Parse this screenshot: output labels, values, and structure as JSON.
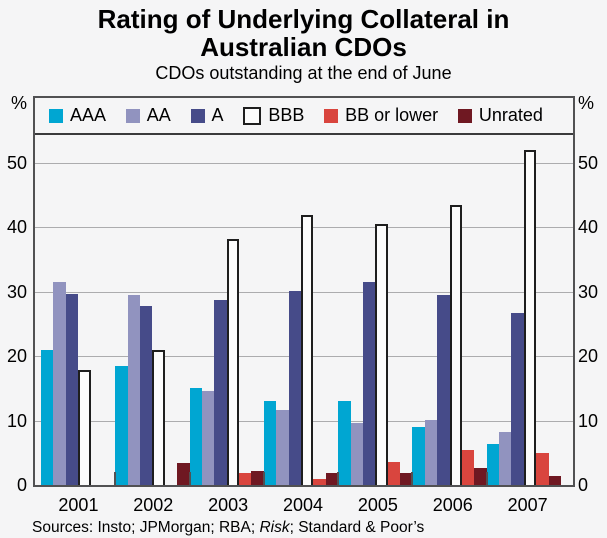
{
  "title": {
    "line1": "Rating of Underlying Collateral in",
    "line2": "Australian CDOs"
  },
  "subtitle": "CDOs outstanding at the end of June",
  "axis": {
    "unit_left": "%",
    "unit_right": "%",
    "tick_labels": [
      0,
      10,
      20,
      30,
      40,
      50
    ]
  },
  "chart_data": {
    "type": "bar",
    "title": "Rating of Underlying Collateral in Australian CDOs",
    "subtitle": "CDOs outstanding at the end of June",
    "categories": [
      "2001",
      "2002",
      "2003",
      "2004",
      "2005",
      "2006",
      "2007"
    ],
    "series": [
      {
        "name": "AAA",
        "color": "#00A6D2",
        "outline": null,
        "values": [
          21.0,
          18.5,
          15.0,
          13.0,
          13.0,
          9.0,
          6.4
        ]
      },
      {
        "name": "AA",
        "color": "#9193BF",
        "outline": null,
        "values": [
          31.4,
          29.5,
          14.5,
          11.7,
          9.6,
          10.0,
          8.2
        ]
      },
      {
        "name": "A",
        "color": "#464B89",
        "outline": null,
        "values": [
          29.6,
          27.7,
          28.7,
          30.1,
          31.4,
          29.5,
          26.7
        ]
      },
      {
        "name": "BBB",
        "color": "#FCFCFC",
        "outline": "#1E1E1E",
        "values": [
          17.8,
          20.9,
          38.1,
          41.9,
          40.4,
          43.4,
          52.0
        ]
      },
      {
        "name": "BB or lower",
        "color": "#D9453E",
        "outline": null,
        "values": [
          0,
          0,
          1.9,
          1.0,
          3.6,
          5.4,
          5.0
        ]
      },
      {
        "name": "Unrated",
        "color": "#6F1822",
        "outline": null,
        "values": [
          0,
          3.4,
          2.1,
          1.8,
          1.8,
          2.6,
          1.4
        ]
      }
    ],
    "ylim": [
      0,
      60
    ],
    "gridlines": [
      10,
      20,
      30,
      40,
      50
    ],
    "grid": true,
    "legend_position": "top",
    "ylabel": "%",
    "xlabel": ""
  },
  "footer": {
    "prefix": "Sources: Insto; JPMorgan; RBA; ",
    "italic": "Risk",
    "suffix": "; Standard & Poor’s"
  }
}
